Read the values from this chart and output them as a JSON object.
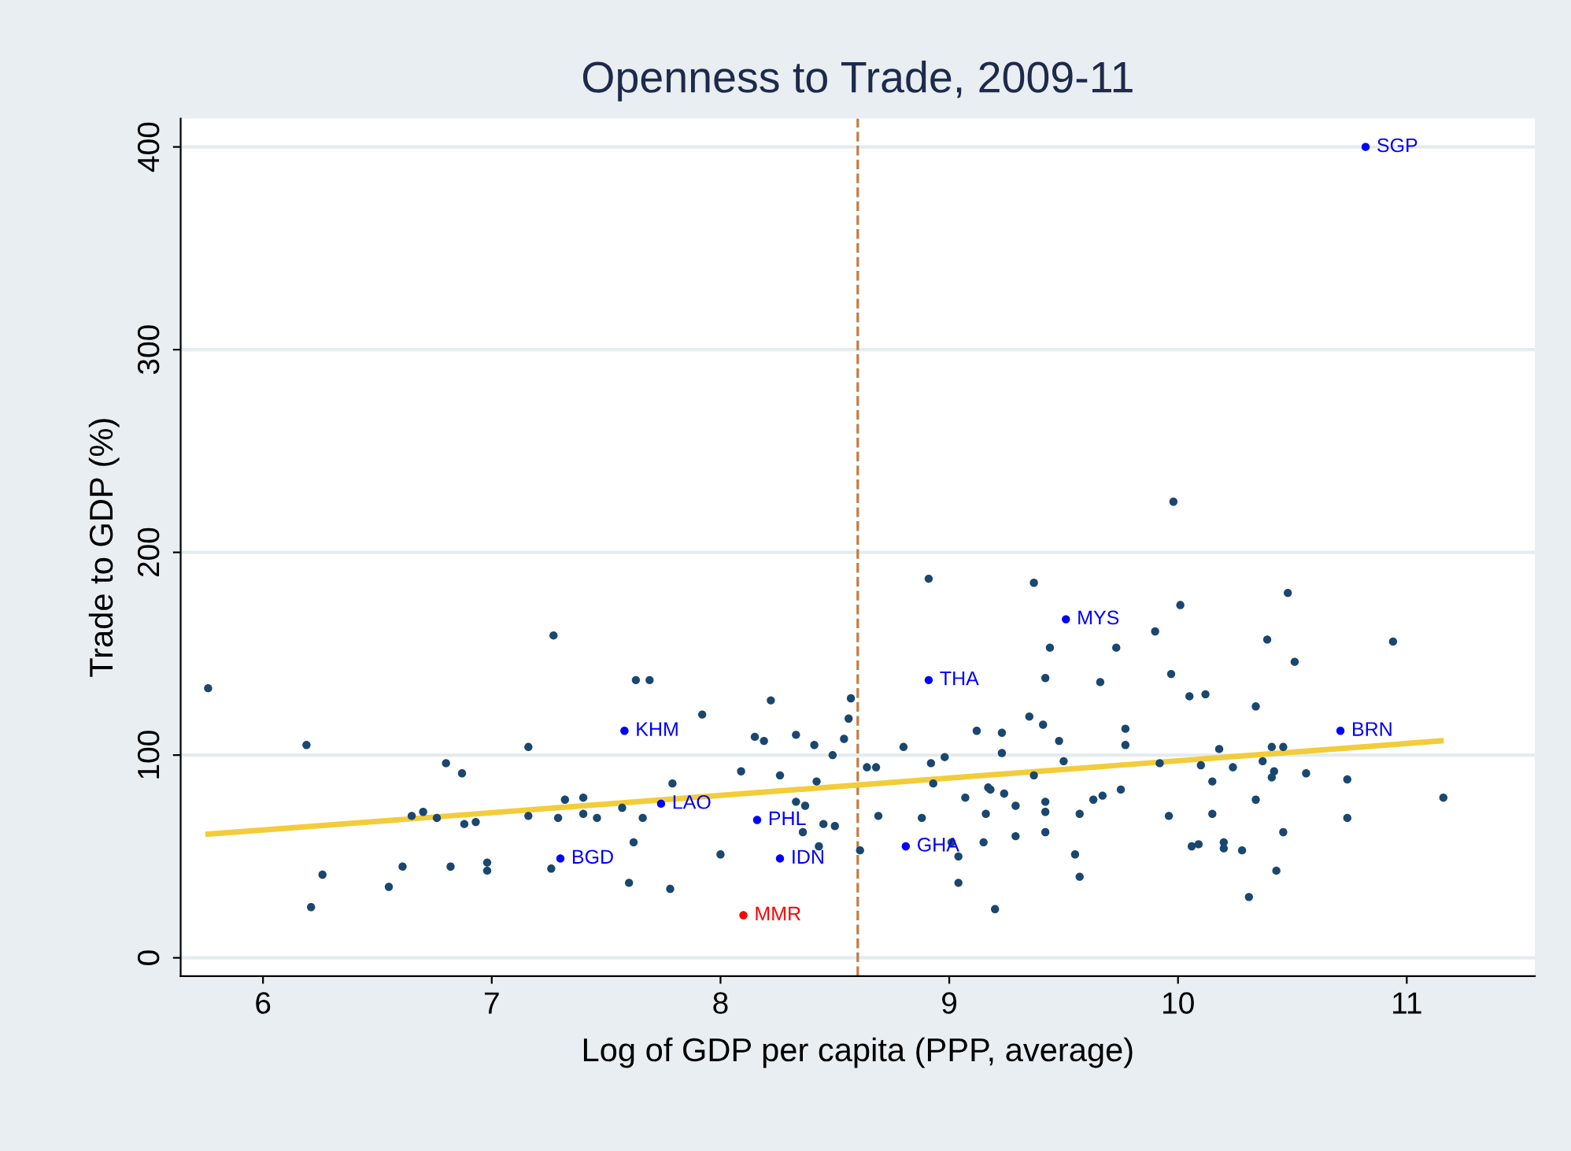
{
  "chart_data": {
    "type": "scatter",
    "title": "Openness to Trade, 2009-11",
    "xlabel": "Log of GDP per capita (PPP, average)",
    "ylabel": "Trade to GDP (%)",
    "xlim": [
      5.64,
      11.56
    ],
    "ylim": [
      -9,
      414
    ],
    "xticks": [
      6,
      7,
      8,
      9,
      10,
      11
    ],
    "yticks": [
      0,
      100,
      200,
      300,
      400
    ],
    "grid": "y",
    "marker": "circle",
    "ref_lines": [
      {
        "axis": "x",
        "value": 8.6,
        "color": "#c0804a",
        "line_style": "dashed"
      }
    ],
    "series": [
      {
        "color": "#1a476f",
        "x": [
          5.76,
          6.19,
          6.26,
          6.21,
          6.55,
          6.61,
          6.65,
          6.7,
          6.76,
          6.8,
          6.87,
          6.88,
          6.93,
          6.82,
          6.98,
          6.98,
          7.27,
          7.63,
          7.69,
          7.92,
          7.16,
          8.22,
          8.15,
          8.19,
          8.33,
          8.41,
          8.49,
          8.54,
          8.56,
          8.57,
          8.09,
          8.26,
          7.79,
          8.42,
          7.32,
          7.4,
          7.16,
          7.29,
          7.4,
          7.46,
          7.57,
          7.66,
          8.33,
          8.37,
          8.45,
          8.5,
          8.36,
          8.43,
          8.61,
          7.62,
          8.0,
          7.26,
          7.6,
          7.78,
          8.91,
          9.37,
          10.01,
          9.9,
          9.44,
          9.73,
          9.42,
          9.66,
          9.97,
          10.05,
          9.35,
          9.41,
          9.12,
          9.23,
          9.77,
          9.77,
          9.48,
          8.8,
          8.98,
          8.92,
          9.23,
          9.5,
          9.92,
          8.64,
          8.68,
          8.93,
          9.37,
          9.17,
          9.18,
          9.07,
          9.24,
          9.29,
          9.42,
          9.42,
          9.63,
          9.67,
          9.75,
          8.69,
          8.88,
          9.16,
          9.57,
          9.96,
          9.01,
          9.04,
          9.15,
          9.29,
          9.42,
          9.55,
          9.57,
          9.04,
          9.2,
          10.06,
          10.48,
          10.39,
          10.94,
          10.51,
          10.12,
          10.34,
          10.18,
          10.41,
          10.46,
          10.1,
          10.24,
          10.37,
          10.42,
          10.41,
          10.56,
          10.74,
          10.15,
          10.34,
          11.16,
          10.15,
          10.74,
          10.46,
          10.09,
          10.2,
          10.2,
          10.28,
          10.43,
          10.31,
          9.98
        ],
        "values": [
          133,
          105,
          41,
          25,
          35,
          45,
          70,
          72,
          69,
          96,
          91,
          66,
          67,
          45,
          47,
          43,
          159,
          137,
          137,
          120,
          104,
          127,
          109,
          107,
          110,
          105,
          100,
          108,
          118,
          128,
          92,
          90,
          86,
          87,
          78,
          79,
          70,
          69,
          71,
          69,
          74,
          69,
          77,
          75,
          66,
          65,
          62,
          55,
          53,
          57,
          51,
          44,
          37,
          34,
          187,
          185,
          174,
          161,
          153,
          153,
          138,
          136,
          140,
          129,
          119,
          115,
          112,
          111,
          113,
          105,
          107,
          104,
          99,
          96,
          101,
          97,
          96,
          94,
          94,
          86,
          90,
          84,
          83,
          79,
          81,
          75,
          77,
          72,
          78,
          80,
          83,
          70,
          69,
          71,
          71,
          70,
          57,
          50,
          57,
          60,
          62,
          51,
          40,
          37,
          24,
          55,
          180,
          157,
          156,
          146,
          130,
          124,
          103,
          104,
          104,
          95,
          94,
          97,
          92,
          89,
          91,
          88,
          87,
          78,
          79,
          71,
          69,
          62,
          56,
          57,
          54,
          53,
          43,
          30,
          225
        ]
      },
      {
        "color": "#0000ff",
        "x": [
          7.58,
          7.74,
          7.3,
          8.16,
          8.26,
          8.91,
          9.51,
          8.81,
          10.71,
          10.82
        ],
        "values": [
          112,
          76,
          49,
          68,
          49,
          137,
          167,
          55,
          112,
          400
        ],
        "value_labels": [
          "KHM",
          "LAO",
          "BGD",
          "PHL",
          "IDN",
          "THA",
          "MYS",
          "GHA",
          "BRN",
          "SGP"
        ]
      },
      {
        "color": "#ff0000",
        "x": [
          8.1
        ],
        "values": [
          21
        ],
        "value_labels": [
          "MMR"
        ]
      },
      {
        "type": "line",
        "marker": "none",
        "color": "#f2cc3a",
        "x": [
          5.76,
          11.15
        ],
        "values": [
          61,
          107
        ]
      }
    ]
  }
}
